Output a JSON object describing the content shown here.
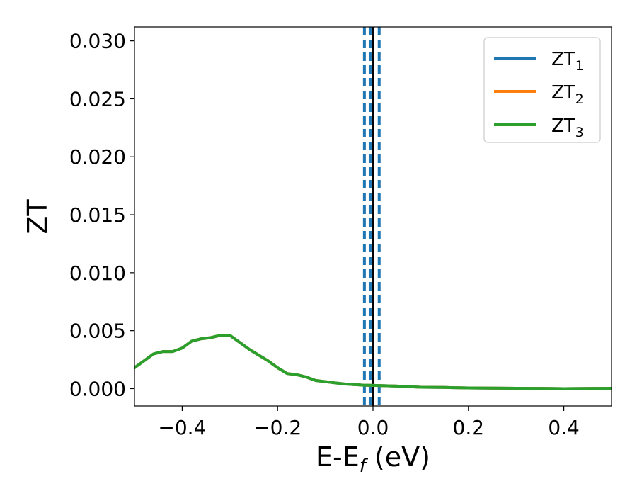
{
  "chart_data": {
    "type": "line",
    "title": "",
    "xlabel": {
      "main": "E-E",
      "sub": "f",
      "suffix": " (eV)"
    },
    "ylabel": "ZT",
    "xlim": [
      -0.5,
      0.5
    ],
    "ylim": [
      -0.0015,
      0.0312
    ],
    "xticks": [
      {
        "value": -0.4,
        "label": "−0.4"
      },
      {
        "value": -0.2,
        "label": "−0.2"
      },
      {
        "value": 0.0,
        "label": "0.0"
      },
      {
        "value": 0.2,
        "label": "0.2"
      },
      {
        "value": 0.4,
        "label": "0.4"
      }
    ],
    "yticks": [
      {
        "value": 0.0,
        "label": "0.000"
      },
      {
        "value": 0.005,
        "label": "0.005"
      },
      {
        "value": 0.01,
        "label": "0.010"
      },
      {
        "value": 0.015,
        "label": "0.015"
      },
      {
        "value": 0.02,
        "label": "0.020"
      },
      {
        "value": 0.025,
        "label": "0.025"
      },
      {
        "value": 0.03,
        "label": "0.030"
      }
    ],
    "grid": false,
    "legend_position": "top-right",
    "series": [
      {
        "name": "ZT",
        "sub": "1",
        "color": "#1f77b4",
        "x": [
          -0.5,
          -0.48,
          -0.46,
          -0.44,
          -0.42,
          -0.4,
          -0.38,
          -0.36,
          -0.34,
          -0.32,
          -0.3,
          -0.28,
          -0.26,
          -0.24,
          -0.22,
          -0.2,
          -0.18,
          -0.16,
          -0.14,
          -0.12,
          -0.1,
          -0.08,
          -0.06,
          -0.04,
          -0.02,
          0.0,
          0.05,
          0.1,
          0.15,
          0.2,
          0.25,
          0.3,
          0.35,
          0.4,
          0.45,
          0.5
        ],
        "y": [
          0.0018,
          0.0024,
          0.003,
          0.0032,
          0.0032,
          0.0035,
          0.0041,
          0.0043,
          0.0044,
          0.0046,
          0.0046,
          0.004,
          0.0034,
          0.0029,
          0.0024,
          0.0018,
          0.0013,
          0.0012,
          0.001,
          0.0007,
          0.0006,
          0.0005,
          0.0004,
          0.00035,
          0.0003,
          0.00028,
          0.00022,
          0.00012,
          0.0001,
          6e-05,
          4e-05,
          3e-05,
          2e-05,
          0.0,
          1e-05,
          3e-05
        ]
      },
      {
        "name": "ZT",
        "sub": "2",
        "color": "#ff7f0e",
        "x": [
          -0.5,
          -0.48,
          -0.46,
          -0.44,
          -0.42,
          -0.4,
          -0.38,
          -0.36,
          -0.34,
          -0.32,
          -0.3,
          -0.28,
          -0.26,
          -0.24,
          -0.22,
          -0.2,
          -0.18,
          -0.16,
          -0.14,
          -0.12,
          -0.1,
          -0.08,
          -0.06,
          -0.04,
          -0.02,
          0.0,
          0.05,
          0.1,
          0.15,
          0.2,
          0.25,
          0.3,
          0.35,
          0.4,
          0.45,
          0.5
        ],
        "y": [
          0.0018,
          0.0024,
          0.003,
          0.0032,
          0.0032,
          0.0035,
          0.0041,
          0.0043,
          0.0044,
          0.0046,
          0.0046,
          0.004,
          0.0034,
          0.0029,
          0.0024,
          0.0018,
          0.0013,
          0.0012,
          0.001,
          0.0007,
          0.0006,
          0.0005,
          0.0004,
          0.00035,
          0.0003,
          0.00028,
          0.00022,
          0.00012,
          0.0001,
          6e-05,
          4e-05,
          3e-05,
          2e-05,
          0.0,
          1e-05,
          3e-05
        ]
      },
      {
        "name": "ZT",
        "sub": "3",
        "color": "#2ca02c",
        "x": [
          -0.5,
          -0.48,
          -0.46,
          -0.44,
          -0.42,
          -0.4,
          -0.38,
          -0.36,
          -0.34,
          -0.32,
          -0.3,
          -0.28,
          -0.26,
          -0.24,
          -0.22,
          -0.2,
          -0.18,
          -0.16,
          -0.14,
          -0.12,
          -0.1,
          -0.08,
          -0.06,
          -0.04,
          -0.02,
          0.0,
          0.05,
          0.1,
          0.15,
          0.2,
          0.25,
          0.3,
          0.35,
          0.4,
          0.45,
          0.5
        ],
        "y": [
          0.0018,
          0.0024,
          0.003,
          0.0032,
          0.0032,
          0.0035,
          0.0041,
          0.0043,
          0.0044,
          0.0046,
          0.0046,
          0.004,
          0.0034,
          0.0029,
          0.0024,
          0.0018,
          0.0013,
          0.0012,
          0.001,
          0.0007,
          0.0006,
          0.0005,
          0.0004,
          0.00035,
          0.0003,
          0.00028,
          0.00022,
          0.00012,
          0.0001,
          6e-05,
          4e-05,
          3e-05,
          2e-05,
          0.0,
          1e-05,
          3e-05
        ]
      }
    ],
    "vertical_lines": [
      {
        "x": 0.0,
        "color": "#000000",
        "style": "solid"
      },
      {
        "x": -0.018,
        "color": "#1f77b4",
        "style": "dashed"
      },
      {
        "x": -0.006,
        "color": "#1f77b4",
        "style": "dashed"
      },
      {
        "x": 0.013,
        "color": "#1f77b4",
        "style": "dashed"
      }
    ]
  }
}
